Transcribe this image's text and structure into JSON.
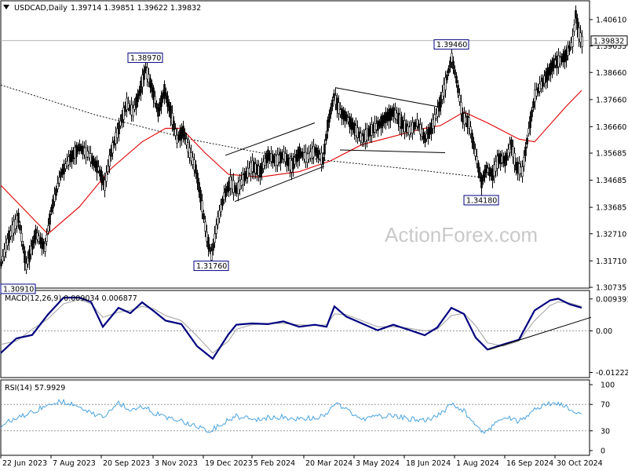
{
  "header": {
    "symbol": "USDCAD,Daily",
    "ohlc": "1.39714 1.39851 1.39622 1.39832"
  },
  "watermark": "ActionForex.com",
  "colors": {
    "background": "#ffffff",
    "candle": "#000000",
    "sma_long": "#000000",
    "sma_mid": "#e00000",
    "macd_line": "#000080",
    "signal_line": "#a0a0a0",
    "rsi_line": "#4aa3df",
    "trendline": "#000000",
    "label_border": "#000080"
  },
  "chart_data": [
    {
      "type": "candlestick",
      "title": "USDCAD,Daily",
      "ylim": [
        1.30735,
        1.411
      ],
      "y_ticks": [
        "1.40610",
        "1.39635",
        "1.38660",
        "1.37660",
        "1.36660",
        "1.35685",
        "1.34685",
        "1.33685",
        "1.32710",
        "1.31710",
        "1.30735"
      ],
      "current_price_label": "1.39832",
      "x_tick_labels": [
        "22 Jun 2023",
        "7 Aug 2023",
        "20 Sep 2023",
        "3 Nov 2023",
        "19 Dec 2023",
        "5 Feb 2024",
        "20 Mar 2024",
        "3 May 2024",
        "18 Jun 2024",
        "1 Aug 2024",
        "16 Sep 2024",
        "30 Oct 2024"
      ],
      "price_path": [
        [
          0,
          1.316
        ],
        [
          10,
          1.326
        ],
        [
          22,
          1.333
        ],
        [
          32,
          1.315
        ],
        [
          44,
          1.327
        ],
        [
          56,
          1.322
        ],
        [
          64,
          1.336
        ],
        [
          76,
          1.349
        ],
        [
          88,
          1.355
        ],
        [
          100,
          1.359
        ],
        [
          112,
          1.356
        ],
        [
          124,
          1.351
        ],
        [
          132,
          1.345
        ],
        [
          140,
          1.357
        ],
        [
          150,
          1.366
        ],
        [
          160,
          1.375
        ],
        [
          168,
          1.372
        ],
        [
          176,
          1.379
        ],
        [
          184,
          1.388
        ],
        [
          192,
          1.381
        ],
        [
          200,
          1.372
        ],
        [
          208,
          1.38
        ],
        [
          216,
          1.372
        ],
        [
          224,
          1.362
        ],
        [
          232,
          1.365
        ],
        [
          240,
          1.357
        ],
        [
          248,
          1.351
        ],
        [
          254,
          1.341
        ],
        [
          262,
          1.326
        ],
        [
          268,
          1.319
        ],
        [
          276,
          1.332
        ],
        [
          284,
          1.341
        ],
        [
          292,
          1.346
        ],
        [
          300,
          1.343
        ],
        [
          310,
          1.348
        ],
        [
          320,
          1.352
        ],
        [
          330,
          1.35
        ],
        [
          340,
          1.356
        ],
        [
          350,
          1.354
        ],
        [
          360,
          1.356
        ],
        [
          370,
          1.352
        ],
        [
          380,
          1.357
        ],
        [
          390,
          1.355
        ],
        [
          400,
          1.358
        ],
        [
          410,
          1.354
        ],
        [
          416,
          1.367
        ],
        [
          424,
          1.378
        ],
        [
          432,
          1.372
        ],
        [
          440,
          1.37
        ],
        [
          450,
          1.366
        ],
        [
          460,
          1.362
        ],
        [
          470,
          1.365
        ],
        [
          480,
          1.367
        ],
        [
          490,
          1.37
        ],
        [
          500,
          1.372
        ],
        [
          510,
          1.368
        ],
        [
          520,
          1.365
        ],
        [
          530,
          1.368
        ],
        [
          540,
          1.362
        ],
        [
          548,
          1.366
        ],
        [
          556,
          1.372
        ],
        [
          564,
          1.38
        ],
        [
          574,
          1.392
        ],
        [
          580,
          1.384
        ],
        [
          588,
          1.37
        ],
        [
          596,
          1.368
        ],
        [
          604,
          1.357
        ],
        [
          612,
          1.346
        ],
        [
          618,
          1.351
        ],
        [
          626,
          1.349
        ],
        [
          634,
          1.355
        ],
        [
          642,
          1.354
        ],
        [
          650,
          1.36
        ],
        [
          656,
          1.352
        ],
        [
          664,
          1.35
        ],
        [
          672,
          1.365
        ],
        [
          680,
          1.378
        ],
        [
          688,
          1.382
        ],
        [
          696,
          1.386
        ],
        [
          704,
          1.39
        ],
        [
          712,
          1.391
        ],
        [
          720,
          1.393
        ],
        [
          728,
          1.398
        ],
        [
          732,
          1.408
        ],
        [
          736,
          1.401
        ],
        [
          740,
          1.398
        ]
      ],
      "series": [
        {
          "name": "",
          "style": "dashed",
          "points": [
            [
              0,
              1.382
            ],
            [
              120,
              1.371
            ],
            [
              240,
              1.362
            ],
            [
              330,
              1.357
            ],
            [
              420,
              1.354
            ],
            [
              520,
              1.351
            ],
            [
              610,
              1.348
            ]
          ]
        },
        {
          "name": "",
          "style": "solid",
          "points": [
            [
              0,
              1.345
            ],
            [
              30,
              1.336
            ],
            [
              60,
              1.327
            ],
            [
              100,
              1.337
            ],
            [
              140,
              1.351
            ],
            [
              180,
              1.361
            ],
            [
              210,
              1.366
            ],
            [
              230,
              1.366
            ],
            [
              260,
              1.357
            ],
            [
              290,
              1.349
            ],
            [
              330,
              1.348
            ],
            [
              380,
              1.35
            ],
            [
              420,
              1.354
            ],
            [
              460,
              1.36
            ],
            [
              500,
              1.363
            ],
            [
              540,
              1.366
            ],
            [
              560,
              1.367
            ],
            [
              590,
              1.372
            ],
            [
              620,
              1.368
            ],
            [
              660,
              1.362
            ],
            [
              680,
              1.361
            ],
            [
              720,
              1.374
            ],
            [
              740,
              1.38
            ]
          ]
        }
      ],
      "trendlines": [
        [
          [
            286,
            1.356
          ],
          [
            400,
            1.368
          ]
        ],
        [
          [
            298,
            1.339
          ],
          [
            412,
            1.352
          ]
        ],
        [
          [
            426,
            1.381
          ],
          [
            556,
            1.374
          ]
        ],
        [
          [
            432,
            1.358
          ],
          [
            566,
            1.357
          ]
        ]
      ],
      "annotations": [
        {
          "text": "1.38970",
          "x": 184,
          "y": 1.3897,
          "pos": "above"
        },
        {
          "text": "1.31760",
          "x": 268,
          "y": 1.3176,
          "pos": "below"
        },
        {
          "text": "1.39460",
          "x": 574,
          "y": 1.3946,
          "pos": "above"
        },
        {
          "text": "1.34180",
          "x": 612,
          "y": 1.3418,
          "pos": "below"
        },
        {
          "text": "1.30910",
          "x": 0,
          "y": 1.3091,
          "pos": "below"
        }
      ]
    },
    {
      "type": "line",
      "title": "MACD(12,26,9) 0.009034 0.006877",
      "ylim": [
        -0.0135,
        0.0112
      ],
      "y_ticks": [
        "0.009391",
        "0.00",
        "-0.012225"
      ],
      "series": [
        {
          "name": "",
          "points": [
            [
              0,
              -0.0065
            ],
            [
              20,
              -0.0022
            ],
            [
              40,
              -0.0012
            ],
            [
              60,
              0.0048
            ],
            [
              80,
              0.0098
            ],
            [
              100,
              0.0098
            ],
            [
              115,
              0.0085
            ],
            [
              130,
              0.0012
            ],
            [
              150,
              0.0068
            ],
            [
              165,
              0.0052
            ],
            [
              180,
              0.0084
            ],
            [
              195,
              0.0058
            ],
            [
              210,
              0.003
            ],
            [
              230,
              0.002
            ],
            [
              250,
              -0.0045
            ],
            [
              270,
              -0.0082
            ],
            [
              290,
              -0.001
            ],
            [
              300,
              0.0018
            ],
            [
              320,
              0.0022
            ],
            [
              340,
              0.002
            ],
            [
              360,
              0.0028
            ],
            [
              380,
              0.0012
            ],
            [
              400,
              0.0018
            ],
            [
              415,
              0.0012
            ],
            [
              425,
              0.0072
            ],
            [
              440,
              0.0042
            ],
            [
              460,
              0.0022
            ],
            [
              480,
              0.0002
            ],
            [
              500,
              0.0018
            ],
            [
              520,
              0.0003
            ],
            [
              540,
              -0.0013
            ],
            [
              556,
              0.001
            ],
            [
              574,
              0.0068
            ],
            [
              590,
              0.005
            ],
            [
              605,
              -0.002
            ],
            [
              620,
              -0.0055
            ],
            [
              640,
              -0.004
            ],
            [
              660,
              -0.0026
            ],
            [
              680,
              0.006
            ],
            [
              700,
              0.009
            ],
            [
              710,
              0.0095
            ],
            [
              725,
              0.0078
            ],
            [
              740,
              0.0068
            ]
          ]
        },
        {
          "name": "",
          "points": [
            [
              0,
              -0.004
            ],
            [
              20,
              -0.003
            ],
            [
              40,
              0.0005
            ],
            [
              60,
              0.0035
            ],
            [
              80,
              0.008
            ],
            [
              100,
              0.0092
            ],
            [
              115,
              0.008
            ],
            [
              130,
              0.004
            ],
            [
              150,
              0.0055
            ],
            [
              165,
              0.006
            ],
            [
              180,
              0.0072
            ],
            [
              195,
              0.0065
            ],
            [
              210,
              0.0045
            ],
            [
              230,
              0.003
            ],
            [
              250,
              -0.0015
            ],
            [
              270,
              -0.0065
            ],
            [
              290,
              -0.003
            ],
            [
              300,
              0.0005
            ],
            [
              320,
              0.0018
            ],
            [
              340,
              0.0022
            ],
            [
              360,
              0.0022
            ],
            [
              380,
              0.0018
            ],
            [
              400,
              0.0016
            ],
            [
              415,
              0.0018
            ],
            [
              425,
              0.005
            ],
            [
              440,
              0.0048
            ],
            [
              460,
              0.003
            ],
            [
              480,
              0.0012
            ],
            [
              500,
              0.0012
            ],
            [
              520,
              0.0008
            ],
            [
              540,
              0.0
            ],
            [
              556,
              0.0005
            ],
            [
              574,
              0.0045
            ],
            [
              590,
              0.0052
            ],
            [
              605,
              0.0015
            ],
            [
              620,
              -0.0035
            ],
            [
              640,
              -0.0045
            ],
            [
              660,
              -0.003
            ],
            [
              680,
              0.003
            ],
            [
              700,
              0.0075
            ],
            [
              710,
              0.0085
            ],
            [
              725,
              0.0082
            ],
            [
              740,
              0.0072
            ]
          ]
        }
      ],
      "trendlines": [
        [
          [
            622,
            -0.0055
          ],
          [
            752,
            0.004
          ]
        ]
      ]
    },
    {
      "type": "line",
      "title": "RSI(14) 57.9929",
      "ylim": [
        0,
        100
      ],
      "y_ticks": [
        "100",
        "70",
        "30",
        "0"
      ],
      "y_tick_values": [
        100,
        70,
        30,
        0
      ],
      "series": [
        {
          "name": "",
          "points": [
            [
              0,
              38
            ],
            [
              20,
              50
            ],
            [
              40,
              58
            ],
            [
              60,
              70
            ],
            [
              80,
              75
            ],
            [
              100,
              64
            ],
            [
              115,
              58
            ],
            [
              130,
              50
            ],
            [
              150,
              72
            ],
            [
              165,
              62
            ],
            [
              180,
              68
            ],
            [
              195,
              58
            ],
            [
              210,
              50
            ],
            [
              230,
              44
            ],
            [
              250,
              38
            ],
            [
              265,
              28
            ],
            [
              280,
              40
            ],
            [
              300,
              52
            ],
            [
              320,
              47
            ],
            [
              340,
              50
            ],
            [
              360,
              51
            ],
            [
              380,
              48
            ],
            [
              400,
              50
            ],
            [
              415,
              55
            ],
            [
              425,
              72
            ],
            [
              440,
              62
            ],
            [
              460,
              48
            ],
            [
              480,
              52
            ],
            [
              500,
              54
            ],
            [
              520,
              48
            ],
            [
              540,
              45
            ],
            [
              556,
              52
            ],
            [
              574,
              70
            ],
            [
              590,
              60
            ],
            [
              605,
              38
            ],
            [
              615,
              28
            ],
            [
              630,
              40
            ],
            [
              645,
              50
            ],
            [
              660,
              44
            ],
            [
              680,
              62
            ],
            [
              700,
              72
            ],
            [
              715,
              70
            ],
            [
              725,
              63
            ],
            [
              740,
              58
            ]
          ]
        }
      ]
    }
  ]
}
